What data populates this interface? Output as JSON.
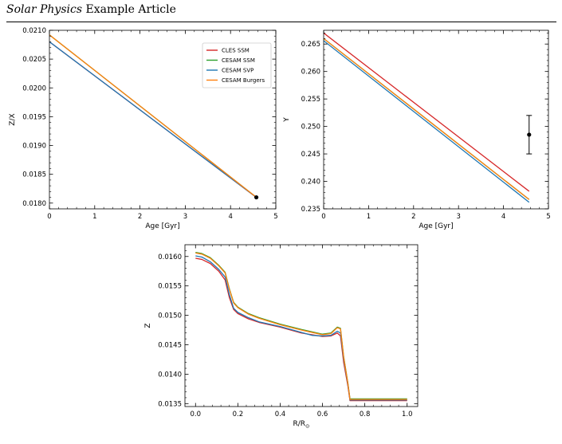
{
  "header": {
    "journal": "Solar Physics",
    "label": "Example Article"
  },
  "legend": [
    {
      "name": "CLES SSM",
      "color": "#d62728"
    },
    {
      "name": "CESAM SSM",
      "color": "#2ca02c"
    },
    {
      "name": "CESAM SVP",
      "color": "#1f77b4"
    },
    {
      "name": "CESAM Burgers",
      "color": "#ff7f0e"
    }
  ],
  "caption": "",
  "chart_data": [
    {
      "type": "line",
      "xlabel": "Age [Gyr]",
      "ylabel": "Z/X",
      "xlim": [
        0,
        5
      ],
      "ylim": [
        0.0179,
        0.021
      ],
      "xticks": [
        "0",
        "1",
        "2",
        "3",
        "4",
        "5"
      ],
      "yticks": [
        "0.0180",
        "0.0185",
        "0.0190",
        "0.0195",
        "0.0200",
        "0.0205",
        "0.0210"
      ],
      "legend_position": "top-right",
      "series": [
        {
          "name": "CLES SSM",
          "color": "#d62728",
          "x": [
            0,
            4.57
          ],
          "y": [
            0.0208,
            0.0181
          ]
        },
        {
          "name": "CESAM SSM",
          "color": "#2ca02c",
          "x": [
            0,
            4.57
          ],
          "y": [
            0.02092,
            0.0181
          ]
        },
        {
          "name": "CESAM SVP",
          "color": "#1f77b4",
          "x": [
            0,
            4.57
          ],
          "y": [
            0.0208,
            0.0181
          ]
        },
        {
          "name": "CESAM Burgers",
          "color": "#ff7f0e",
          "x": [
            0,
            4.57
          ],
          "y": [
            0.02092,
            0.0181
          ]
        }
      ],
      "markers": [
        {
          "x": 4.57,
          "y": 0.0181
        }
      ]
    },
    {
      "type": "line",
      "xlabel": "Age [Gyr]",
      "ylabel": "Y",
      "xlim": [
        0,
        5
      ],
      "ylim": [
        0.235,
        0.2675
      ],
      "xticks": [
        "0",
        "1",
        "2",
        "3",
        "4",
        "5"
      ],
      "yticks": [
        "0.235",
        "0.240",
        "0.245",
        "0.250",
        "0.255",
        "0.260",
        "0.265"
      ],
      "series": [
        {
          "name": "CLES SSM",
          "color": "#d62728",
          "x": [
            0,
            4.57
          ],
          "y": [
            0.267,
            0.2382
          ]
        },
        {
          "name": "CESAM SSM",
          "color": "#2ca02c",
          "x": [
            0,
            4.57
          ],
          "y": [
            0.266,
            0.2367
          ]
        },
        {
          "name": "CESAM SVP",
          "color": "#1f77b4",
          "x": [
            0,
            4.57
          ],
          "y": [
            0.2656,
            0.2362
          ]
        },
        {
          "name": "CESAM Burgers",
          "color": "#ff7f0e",
          "x": [
            0,
            4.57
          ],
          "y": [
            0.266,
            0.2367
          ]
        }
      ],
      "errorbars": [
        {
          "x": 4.57,
          "y": 0.2485,
          "err": 0.0035
        }
      ]
    },
    {
      "type": "line",
      "xlabel": "R/R",
      "xlabel_sub": "⊙",
      "ylabel": "Z",
      "xlim": [
        -0.05,
        1.05
      ],
      "ylim": [
        0.01345,
        0.0162
      ],
      "xticks": [
        "0.0",
        "0.2",
        "0.4",
        "0.6",
        "0.8",
        "1.0"
      ],
      "yticks": [
        "0.0135",
        "0.0140",
        "0.0145",
        "0.0150",
        "0.0155",
        "0.0160"
      ],
      "series": [
        {
          "name": "CLES SSM",
          "color": "#d62728",
          "x": [
            0,
            0.03,
            0.07,
            0.11,
            0.14,
            0.16,
            0.18,
            0.2,
            0.25,
            0.3,
            0.4,
            0.5,
            0.55,
            0.6,
            0.64,
            0.67,
            0.685,
            0.7,
            0.72,
            0.73,
            1.0
          ],
          "y": [
            0.01597,
            0.01595,
            0.01588,
            0.01575,
            0.0156,
            0.0153,
            0.0151,
            0.01503,
            0.01494,
            0.01488,
            0.0148,
            0.0147,
            0.01467,
            0.01464,
            0.01465,
            0.0147,
            0.01465,
            0.0142,
            0.0138,
            0.01355,
            0.01355
          ]
        },
        {
          "name": "CESAM SSM",
          "color": "#2ca02c",
          "x": [
            0,
            0.03,
            0.07,
            0.11,
            0.14,
            0.16,
            0.18,
            0.2,
            0.25,
            0.3,
            0.4,
            0.5,
            0.55,
            0.6,
            0.64,
            0.67,
            0.685,
            0.7,
            0.72,
            0.73,
            1.0
          ],
          "y": [
            0.01607,
            0.01605,
            0.01598,
            0.01585,
            0.01573,
            0.01545,
            0.01522,
            0.01514,
            0.01503,
            0.01496,
            0.01485,
            0.01476,
            0.01472,
            0.01468,
            0.0147,
            0.0148,
            0.01478,
            0.0143,
            0.01385,
            0.01358,
            0.01358
          ]
        },
        {
          "name": "CESAM SVP",
          "color": "#1f77b4",
          "x": [
            0,
            0.03,
            0.07,
            0.11,
            0.14,
            0.16,
            0.18,
            0.2,
            0.25,
            0.3,
            0.4,
            0.5,
            0.55,
            0.6,
            0.64,
            0.67,
            0.685,
            0.7,
            0.72,
            0.73,
            1.0
          ],
          "y": [
            0.01601,
            0.01599,
            0.01591,
            0.01578,
            0.01565,
            0.01535,
            0.01512,
            0.01505,
            0.01496,
            0.01489,
            0.01481,
            0.01471,
            0.01466,
            0.01465,
            0.01466,
            0.01473,
            0.0147,
            0.01425,
            0.01382,
            0.01356,
            0.01356
          ]
        },
        {
          "name": "CESAM Burgers",
          "color": "#ff7f0e",
          "x": [
            0,
            0.03,
            0.07,
            0.11,
            0.14,
            0.16,
            0.18,
            0.2,
            0.25,
            0.3,
            0.4,
            0.5,
            0.55,
            0.6,
            0.64,
            0.67,
            0.685,
            0.7,
            0.72,
            0.73,
            1.0
          ],
          "y": [
            0.01606,
            0.01604,
            0.01597,
            0.01584,
            0.01572,
            0.01544,
            0.01521,
            0.01513,
            0.01502,
            0.01495,
            0.01484,
            0.01475,
            0.01471,
            0.01467,
            0.01469,
            0.01479,
            0.01477,
            0.01429,
            0.01384,
            0.01357,
            0.01357
          ]
        }
      ]
    }
  ]
}
